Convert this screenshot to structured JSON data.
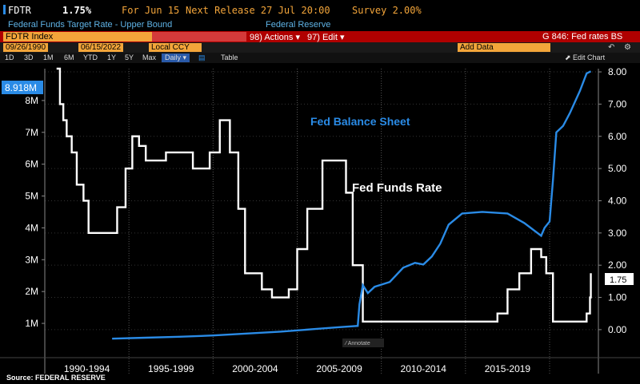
{
  "header": {
    "ticker": "FDTR",
    "value": "1.75%",
    "for_label": "For Jun 15",
    "next_release": "Next Release 27 Jul 20:00",
    "survey": "Survey 2.00%",
    "description": "Federal Funds Target Rate - Upper Bound",
    "source_org": "Federal Reserve"
  },
  "toolbar": {
    "index_label": "FDTR Index",
    "actions_label": "98) Actions ▾",
    "edit_label": "97) Edit ▾",
    "chart_title": "G 846: Fed rates BS"
  },
  "range": {
    "start_date": "09/26/1990",
    "end_date": "06/15/2022",
    "currency": "Local CCY",
    "add_data": "Add Data",
    "edit_chart": "Edit Chart"
  },
  "periods": [
    "1D",
    "3D",
    "1M",
    "6M",
    "YTD",
    "1Y",
    "5Y",
    "Max"
  ],
  "freq": "Daily ▾",
  "table_label": "Table",
  "source": "Source: FEDERAL RESERVE",
  "colors": {
    "balance": "#2a8be6",
    "rate": "#ffffff",
    "accent": "#b00000"
  },
  "chart_data": {
    "type": "line",
    "x_tick_labels": [
      "1990-1994",
      "1995-1999",
      "2000-2004",
      "2005-2009",
      "2010-2014",
      "2015-2019"
    ],
    "left_axis": {
      "ticks": [
        "1M",
        "2M",
        "3M",
        "4M",
        "5M",
        "6M",
        "7M",
        "8M"
      ],
      "range": [
        0.5,
        9
      ]
    },
    "right_axis": {
      "ticks": [
        "0.00",
        "1.00",
        "2.00",
        "3.00",
        "4.00",
        "5.00",
        "6.00",
        "7.00",
        "8.00"
      ],
      "range": [
        -0.3,
        8.1
      ]
    },
    "last_left_label": "8.918M",
    "last_right_label": "1.75",
    "annotation_note": "Annotate",
    "series": [
      {
        "name": "Fed Funds Rate",
        "axis": "right",
        "points": [
          [
            1990.7,
            8.1
          ],
          [
            1990.9,
            7.0
          ],
          [
            1991.1,
            6.5
          ],
          [
            1991.3,
            6.0
          ],
          [
            1991.6,
            5.5
          ],
          [
            1991.9,
            4.5
          ],
          [
            1992.3,
            4.0
          ],
          [
            1992.6,
            3.0
          ],
          [
            1994.0,
            3.0
          ],
          [
            1994.3,
            3.8
          ],
          [
            1994.8,
            5.0
          ],
          [
            1995.2,
            6.0
          ],
          [
            1995.6,
            5.7
          ],
          [
            1996.0,
            5.25
          ],
          [
            1997.2,
            5.5
          ],
          [
            1998.8,
            5.0
          ],
          [
            1999.4,
            5.0
          ],
          [
            1999.8,
            5.5
          ],
          [
            2000.4,
            6.5
          ],
          [
            2001.0,
            5.5
          ],
          [
            2001.5,
            3.75
          ],
          [
            2001.9,
            1.75
          ],
          [
            2002.9,
            1.25
          ],
          [
            2003.5,
            1.0
          ],
          [
            2004.5,
            1.25
          ],
          [
            2005.0,
            2.5
          ],
          [
            2005.6,
            3.75
          ],
          [
            2006.5,
            5.25
          ],
          [
            2007.6,
            5.25
          ],
          [
            2007.9,
            4.25
          ],
          [
            2008.3,
            2.0
          ],
          [
            2008.9,
            0.25
          ],
          [
            2015.9,
            0.25
          ],
          [
            2016.9,
            0.5
          ],
          [
            2017.5,
            1.25
          ],
          [
            2018.2,
            1.75
          ],
          [
            2018.9,
            2.5
          ],
          [
            2019.5,
            2.25
          ],
          [
            2019.8,
            1.75
          ],
          [
            2020.2,
            0.25
          ],
          [
            2021.9,
            0.25
          ],
          [
            2022.2,
            0.5
          ],
          [
            2022.4,
            1.0
          ],
          [
            2022.45,
            1.75
          ]
        ]
      },
      {
        "name": "Fed Balance Sheet",
        "axis": "left",
        "points": [
          [
            1994.0,
            0.52
          ],
          [
            1996.0,
            0.55
          ],
          [
            1998.0,
            0.58
          ],
          [
            2000.0,
            0.62
          ],
          [
            2002.0,
            0.68
          ],
          [
            2004.0,
            0.74
          ],
          [
            2006.0,
            0.82
          ],
          [
            2007.5,
            0.88
          ],
          [
            2008.6,
            0.92
          ],
          [
            2008.7,
            1.6
          ],
          [
            2008.9,
            2.2
          ],
          [
            2009.2,
            1.95
          ],
          [
            2009.6,
            2.15
          ],
          [
            2010.5,
            2.3
          ],
          [
            2011.3,
            2.75
          ],
          [
            2012.0,
            2.9
          ],
          [
            2012.5,
            2.85
          ],
          [
            2013.0,
            3.1
          ],
          [
            2013.5,
            3.5
          ],
          [
            2014.0,
            4.1
          ],
          [
            2014.8,
            4.45
          ],
          [
            2016.0,
            4.5
          ],
          [
            2017.5,
            4.45
          ],
          [
            2018.5,
            4.15
          ],
          [
            2019.5,
            3.75
          ],
          [
            2019.7,
            4.0
          ],
          [
            2020.0,
            4.2
          ],
          [
            2020.2,
            5.5
          ],
          [
            2020.4,
            7.0
          ],
          [
            2020.8,
            7.2
          ],
          [
            2021.2,
            7.6
          ],
          [
            2021.8,
            8.3
          ],
          [
            2022.2,
            8.85
          ],
          [
            2022.45,
            8.918
          ]
        ]
      }
    ]
  }
}
